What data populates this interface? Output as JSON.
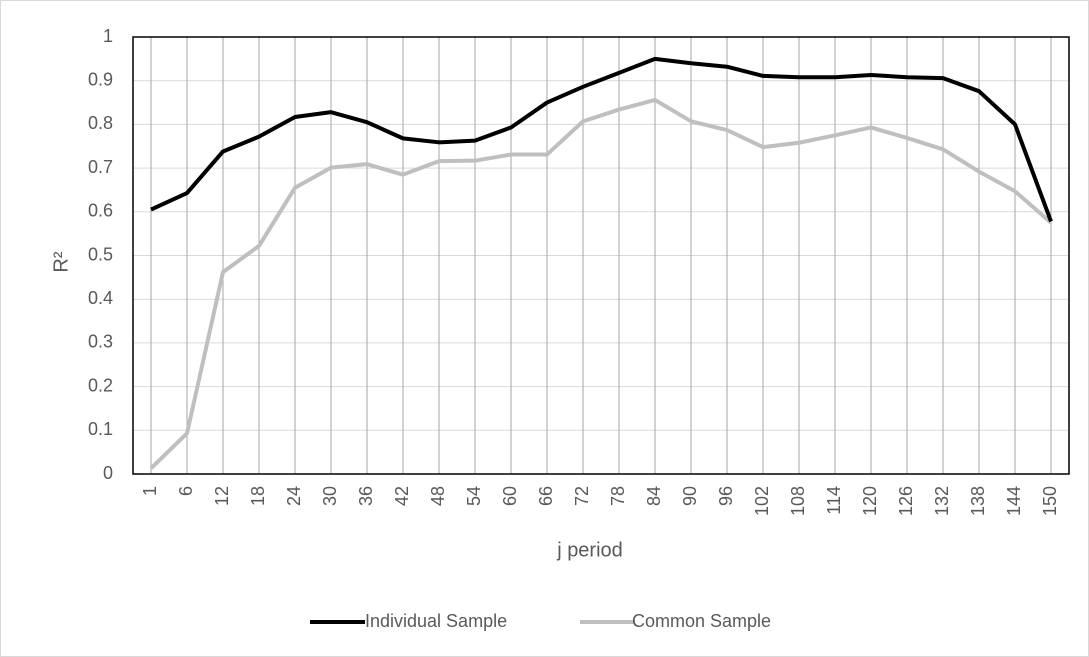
{
  "chart_data": {
    "type": "line",
    "y_label": "R²",
    "x_label": "j period",
    "categories": [
      "1",
      "6",
      "12",
      "18",
      "24",
      "30",
      "36",
      "42",
      "48",
      "54",
      "60",
      "66",
      "72",
      "78",
      "84",
      "90",
      "96",
      "102",
      "108",
      "114",
      "120",
      "126",
      "132",
      "138",
      "144",
      "150"
    ],
    "series": [
      {
        "name": "Individual Sample",
        "color": "#000000",
        "values": [
          0.605,
          0.643,
          0.738,
          0.772,
          0.817,
          0.828,
          0.805,
          0.768,
          0.759,
          0.763,
          0.793,
          0.85,
          0.886,
          0.918,
          0.95,
          0.94,
          0.932,
          0.911,
          0.908,
          0.908,
          0.913,
          0.908,
          0.906,
          0.876,
          0.8,
          0.578
        ]
      },
      {
        "name": "Common Sample",
        "color": "#bfbfbf",
        "values": [
          0.013,
          0.093,
          0.462,
          0.522,
          0.655,
          0.701,
          0.709,
          0.685,
          0.716,
          0.717,
          0.731,
          0.731,
          0.807,
          0.834,
          0.856,
          0.807,
          0.787,
          0.748,
          0.758,
          0.775,
          0.793,
          0.769,
          0.743,
          0.692,
          0.647,
          0.575
        ]
      }
    ],
    "ylim": [
      0,
      1
    ],
    "yticks": [
      0,
      0.1,
      0.2,
      0.3,
      0.4,
      0.5,
      0.6,
      0.7,
      0.8,
      0.9,
      1
    ],
    "grid": true,
    "x_grid": true,
    "legend": "bottom"
  }
}
